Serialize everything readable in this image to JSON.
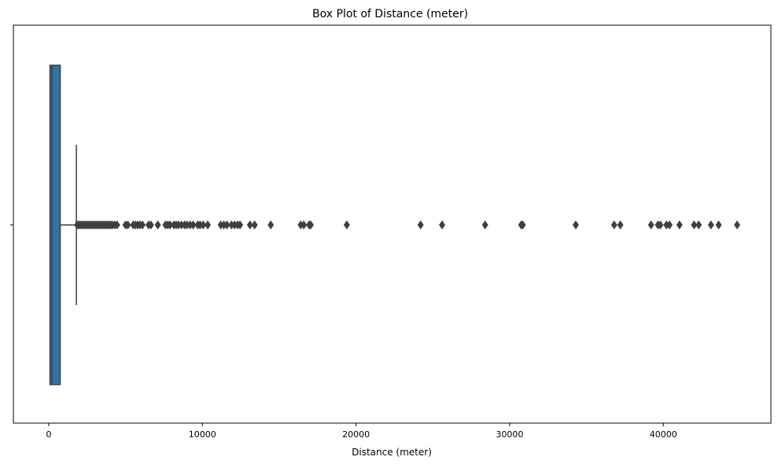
{
  "chart_data": {
    "type": "box",
    "title": "Box Plot of Distance (meter)",
    "xlabel": "Distance (meter)",
    "ylabel": "",
    "orientation": "horizontal",
    "xlim": [
      -2300,
      47000
    ],
    "xticks": [
      0,
      10000,
      20000,
      30000,
      40000
    ],
    "xtick_labels": [
      "0",
      "10000",
      "20000",
      "30000",
      "40000"
    ],
    "grid": false,
    "box": {
      "min": 0,
      "q1": 80,
      "median": 200,
      "q3": 750,
      "whisker_low": 0,
      "whisker_high": 1800,
      "color": "#3274a1",
      "edge_color": "#3f3f3f"
    },
    "outliers": [
      1850,
      1950,
      2050,
      2150,
      2250,
      2350,
      2450,
      2550,
      2650,
      2750,
      2850,
      2950,
      3050,
      3150,
      3250,
      3350,
      3450,
      3550,
      3650,
      3750,
      3850,
      3950,
      4050,
      4150,
      4300,
      4450,
      5000,
      5150,
      5500,
      5650,
      5800,
      5950,
      6100,
      6500,
      6650,
      7100,
      7600,
      7750,
      7900,
      8150,
      8300,
      8450,
      8650,
      8850,
      9000,
      9200,
      9400,
      9700,
      9850,
      10050,
      10350,
      11200,
      11400,
      11600,
      11900,
      12100,
      12300,
      12450,
      13100,
      13400,
      14450,
      16400,
      16600,
      16950,
      17050,
      19400,
      24200,
      25600,
      28400,
      30750,
      30850,
      34300,
      36800,
      37200,
      39200,
      39650,
      39800,
      40200,
      40400,
      41050,
      42000,
      42300,
      43100,
      43600,
      44800
    ]
  }
}
